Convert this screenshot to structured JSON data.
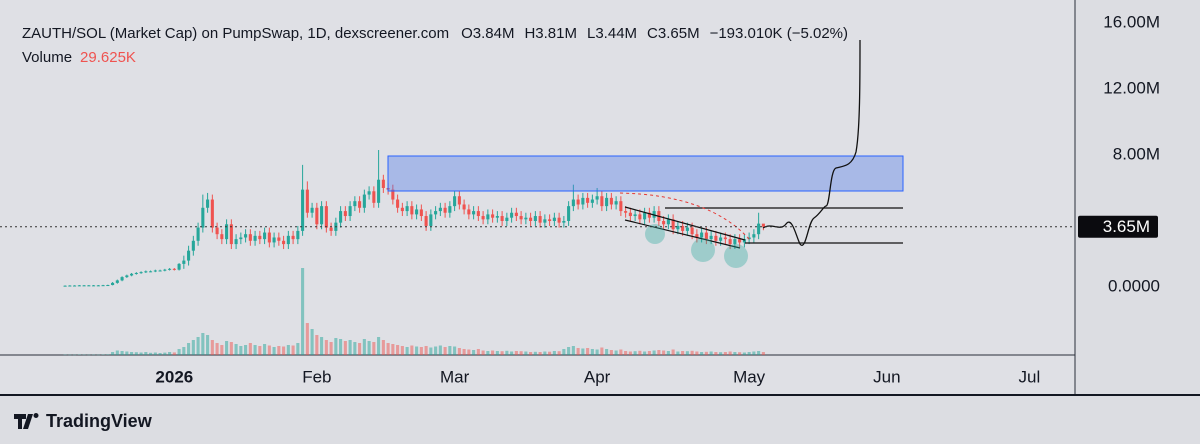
{
  "header": {
    "title": "ZAUTH/SOL (Market Cap) on PumpSwap, 1D, dexscreener.com",
    "open": "O3.84M",
    "high": "H3.81M",
    "low": "L3.44M",
    "close": "C3.65M",
    "change": "−193.010K (−5.02%)",
    "volume_label": "Volume",
    "volume_value": "29.625K"
  },
  "footer": {
    "brand": "TradingView"
  },
  "chart_data": {
    "type": "candlestick",
    "up_color": "#26a69a",
    "down_color": "#ef5350",
    "grid": false,
    "ylim": [
      -4.12,
      17.39
    ],
    "yticks": [
      {
        "value": 0,
        "label": "0.0000"
      },
      {
        "value": 8,
        "label": "8.00M"
      },
      {
        "value": 12,
        "label": "12.00M"
      },
      {
        "value": 16,
        "label": "16.00M"
      }
    ],
    "xlim": [
      -13.7,
      212.6
    ],
    "xticks": [
      {
        "value": 23,
        "label": "2026"
      },
      {
        "value": 53,
        "label": "Feb"
      },
      {
        "value": 82,
        "label": "Mar"
      },
      {
        "value": 112,
        "label": "Apr"
      },
      {
        "value": 144,
        "label": "May"
      },
      {
        "value": 173,
        "label": "Jun"
      },
      {
        "value": 203,
        "label": "Jul"
      }
    ],
    "last_price": {
      "value": 3.65,
      "label": "3.65M"
    },
    "volume_ylim": [
      0,
      3550
    ],
    "open": [
      0.07,
      0.08,
      0.09,
      0.09,
      0.1,
      0.1,
      0.1,
      0.1,
      0.1,
      0.11,
      0.12,
      0.25,
      0.4,
      0.6,
      0.7,
      0.8,
      0.85,
      0.9,
      0.95,
      0.95,
      1.0,
      1.0,
      1.05,
      1.1,
      1.05,
      1.4,
      1.6,
      2.2,
      2.8,
      3.6,
      4.8,
      5.3,
      3.6,
      3.2,
      2.9,
      3.8,
      2.6,
      2.9,
      3.0,
      3.2,
      2.8,
      3.1,
      2.9,
      3.3,
      2.7,
      3.0,
      2.8,
      2.6,
      3.1,
      2.9,
      3.4,
      5.9,
      4.5,
      4.8,
      3.8,
      4.9,
      3.6,
      3.4,
      3.9,
      4.6,
      4.3,
      4.9,
      5.2,
      4.8,
      5.6,
      5.8,
      5.1,
      6.5,
      6.0,
      5.9,
      5.3,
      4.8,
      4.6,
      4.9,
      4.4,
      4.7,
      4.3,
      3.7,
      4.4,
      4.6,
      4.8,
      4.5,
      4.9,
      5.5,
      5.0,
      4.7,
      4.4,
      4.6,
      4.3,
      4.1,
      4.4,
      4.2,
      4.3,
      4.0,
      4.2,
      4.5,
      4.3,
      4.1,
      4.2,
      4.0,
      4.3,
      3.9,
      4.1,
      4.0,
      4.2,
      3.9,
      4.0,
      4.9,
      5.3,
      5.0,
      5.4,
      5.1,
      5.3,
      5.5,
      4.9,
      5.4,
      5.0,
      5.2,
      4.6,
      4.5,
      4.3,
      4.4,
      4.1,
      4.5,
      4.2,
      4.6,
      4.0,
      3.8,
      4.1,
      3.5,
      3.7,
      3.4,
      3.6,
      3.2,
      3.0,
      3.3,
      2.9,
      3.1,
      2.8,
      3.0,
      2.9,
      2.6,
      2.9,
      2.7,
      2.9,
      3.0,
      3.2,
      3.84
    ],
    "high": [
      0.1,
      0.11,
      0.11,
      0.12,
      0.12,
      0.12,
      0.12,
      0.12,
      0.13,
      0.14,
      0.3,
      0.45,
      0.65,
      0.75,
      0.85,
      0.9,
      0.95,
      1.0,
      1.0,
      1.05,
      1.05,
      1.1,
      1.15,
      1.15,
      1.45,
      1.9,
      2.5,
      3.1,
      3.9,
      5.6,
      5.7,
      5.6,
      3.9,
      3.5,
      4.1,
      4.1,
      3.2,
      3.3,
      3.5,
      3.5,
      3.4,
      3.4,
      3.6,
      3.6,
      3.3,
      3.3,
      3.1,
      3.4,
      3.4,
      3.7,
      7.4,
      6.4,
      5.1,
      5.1,
      5.2,
      5.2,
      3.9,
      4.2,
      4.9,
      4.9,
      5.2,
      5.5,
      5.5,
      5.9,
      6.1,
      6.1,
      8.3,
      6.8,
      6.3,
      6.2,
      5.6,
      5.1,
      5.2,
      5.2,
      5.0,
      5.0,
      4.6,
      4.7,
      4.9,
      5.1,
      5.1,
      5.2,
      5.8,
      5.8,
      5.3,
      5.0,
      4.9,
      4.9,
      4.6,
      4.7,
      4.7,
      4.6,
      4.6,
      4.5,
      4.8,
      4.8,
      4.6,
      4.5,
      4.5,
      4.6,
      4.6,
      4.4,
      4.4,
      4.5,
      4.5,
      4.3,
      5.2,
      6.2,
      5.6,
      5.7,
      5.7,
      5.6,
      6.0,
      5.8,
      5.7,
      5.7,
      5.5,
      5.5,
      4.9,
      4.8,
      4.7,
      4.7,
      4.8,
      4.8,
      4.9,
      4.9,
      4.3,
      4.4,
      4.4,
      4.0,
      4.0,
      3.9,
      3.9,
      3.5,
      3.6,
      3.6,
      3.4,
      3.4,
      3.3,
      3.3,
      3.2,
      3.2,
      3.2,
      3.2,
      3.3,
      3.5,
      4.5,
      3.81
    ],
    "low": [
      0.05,
      0.06,
      0.07,
      0.07,
      0.08,
      0.08,
      0.08,
      0.08,
      0.08,
      0.09,
      0.1,
      0.2,
      0.35,
      0.55,
      0.65,
      0.75,
      0.8,
      0.85,
      0.9,
      0.9,
      0.95,
      0.95,
      1.0,
      1.0,
      1.0,
      1.1,
      1.3,
      1.9,
      2.5,
      3.3,
      4.5,
      3.3,
      2.9,
      2.6,
      2.6,
      2.3,
      2.3,
      2.6,
      2.7,
      2.5,
      2.5,
      2.6,
      2.6,
      2.4,
      2.4,
      2.5,
      2.3,
      2.3,
      2.6,
      2.6,
      3.1,
      4.2,
      4.2,
      3.5,
      3.5,
      3.3,
      3.1,
      3.1,
      3.6,
      4.0,
      4.0,
      4.6,
      4.5,
      4.5,
      5.3,
      4.8,
      4.8,
      5.7,
      5.6,
      5.0,
      4.5,
      4.3,
      4.3,
      4.1,
      4.1,
      4.0,
      3.4,
      3.4,
      4.1,
      4.3,
      4.2,
      4.2,
      4.6,
      4.7,
      4.4,
      4.1,
      4.1,
      4.0,
      3.8,
      3.8,
      3.9,
      3.9,
      3.7,
      3.7,
      3.9,
      4.0,
      3.8,
      3.8,
      3.7,
      3.7,
      3.6,
      3.6,
      3.7,
      3.7,
      3.6,
      3.6,
      3.7,
      4.6,
      4.7,
      4.7,
      4.8,
      4.8,
      5.0,
      4.6,
      4.6,
      4.7,
      4.7,
      4.3,
      4.2,
      4.0,
      4.0,
      3.8,
      3.8,
      3.9,
      3.9,
      3.7,
      3.5,
      3.5,
      3.2,
      3.2,
      3.1,
      3.1,
      2.9,
      2.7,
      2.7,
      2.6,
      2.6,
      2.5,
      2.5,
      2.6,
      2.3,
      2.3,
      2.4,
      2.4,
      2.6,
      2.7,
      2.9,
      3.44
    ],
    "close": [
      0.08,
      0.09,
      0.09,
      0.1,
      0.1,
      0.1,
      0.1,
      0.1,
      0.11,
      0.12,
      0.25,
      0.4,
      0.6,
      0.7,
      0.8,
      0.85,
      0.9,
      0.95,
      0.95,
      1.0,
      1.0,
      1.05,
      1.1,
      1.05,
      1.4,
      1.6,
      2.2,
      2.8,
      3.6,
      4.8,
      5.3,
      3.6,
      3.2,
      2.9,
      3.8,
      2.6,
      2.9,
      3.0,
      3.2,
      2.8,
      3.1,
      2.9,
      3.3,
      2.7,
      3.0,
      2.8,
      2.6,
      3.1,
      2.9,
      3.4,
      5.9,
      4.5,
      4.8,
      3.8,
      4.9,
      3.6,
      3.4,
      3.9,
      4.6,
      4.3,
      4.9,
      5.2,
      4.8,
      5.6,
      5.8,
      5.1,
      6.5,
      6.0,
      5.9,
      5.3,
      4.8,
      4.6,
      4.9,
      4.4,
      4.7,
      4.3,
      3.7,
      4.4,
      4.6,
      4.8,
      4.5,
      4.9,
      5.5,
      5.0,
      4.7,
      4.4,
      4.6,
      4.3,
      4.1,
      4.4,
      4.2,
      4.3,
      4.0,
      4.2,
      4.5,
      4.3,
      4.1,
      4.2,
      4.0,
      4.3,
      3.9,
      4.1,
      4.0,
      4.2,
      3.9,
      4.0,
      4.9,
      5.3,
      5.0,
      5.4,
      5.1,
      5.3,
      5.5,
      4.9,
      5.4,
      5.0,
      5.2,
      4.6,
      4.5,
      4.3,
      4.4,
      4.1,
      4.5,
      4.2,
      4.6,
      4.0,
      3.8,
      4.1,
      3.5,
      3.7,
      3.4,
      3.6,
      3.2,
      3.0,
      3.3,
      2.9,
      3.1,
      2.8,
      3.0,
      2.9,
      2.6,
      2.9,
      2.7,
      2.9,
      3.0,
      3.2,
      3.84,
      3.65
    ],
    "volume": [
      4,
      3,
      3,
      5,
      4,
      3,
      4,
      3,
      5,
      6,
      30,
      45,
      40,
      35,
      30,
      28,
      25,
      30,
      22,
      25,
      20,
      24,
      30,
      26,
      60,
      80,
      120,
      150,
      180,
      220,
      200,
      150,
      120,
      100,
      140,
      130,
      110,
      90,
      100,
      120,
      100,
      90,
      110,
      95,
      80,
      90,
      85,
      100,
      95,
      120,
      870,
      320,
      260,
      200,
      180,
      150,
      130,
      170,
      160,
      140,
      150,
      130,
      120,
      160,
      140,
      130,
      180,
      150,
      120,
      110,
      100,
      90,
      80,
      95,
      85,
      80,
      90,
      75,
      85,
      95,
      80,
      90,
      85,
      70,
      60,
      55,
      50,
      60,
      45,
      40,
      45,
      40,
      38,
      42,
      35,
      40,
      38,
      35,
      30,
      32,
      30,
      35,
      33,
      40,
      38,
      60,
      80,
      90,
      70,
      65,
      70,
      60,
      55,
      75,
      60,
      50,
      45,
      55,
      40,
      35,
      38,
      42,
      35,
      40,
      45,
      50,
      45,
      40,
      55,
      35,
      40,
      38,
      42,
      35,
      30,
      32,
      35,
      30,
      28,
      30,
      35,
      30,
      28,
      25,
      30,
      35,
      40,
      29.625
    ]
  }
}
